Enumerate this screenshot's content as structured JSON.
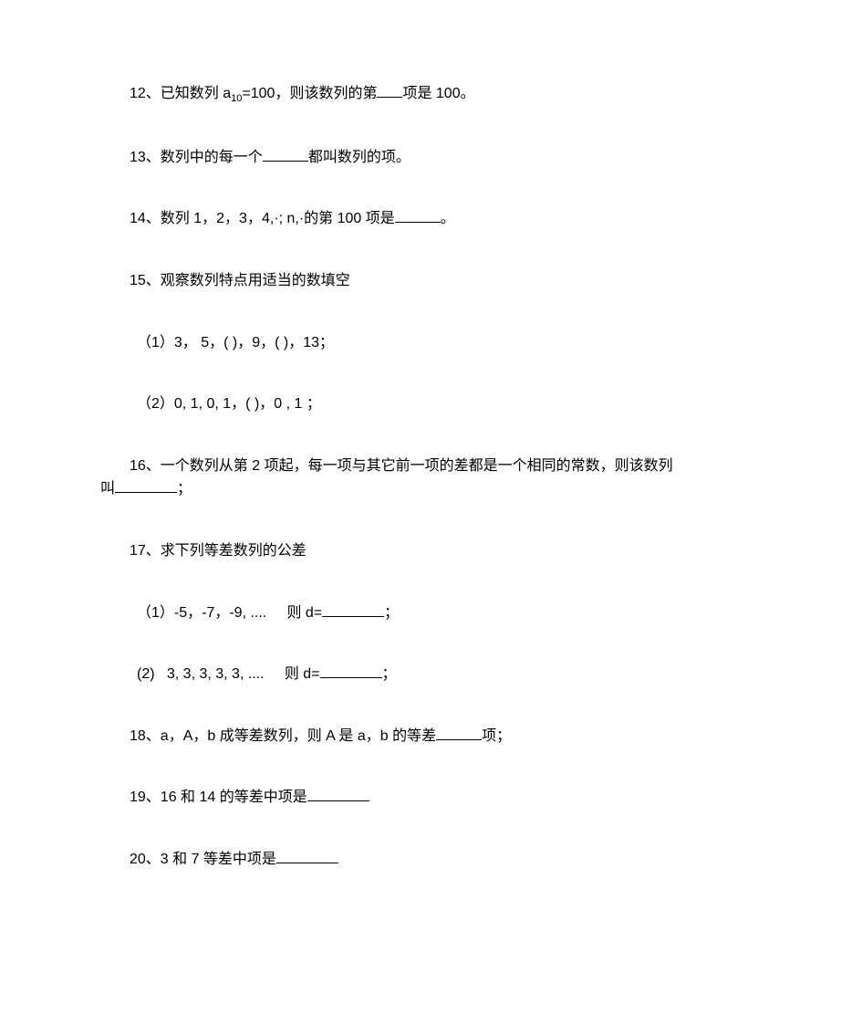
{
  "q12": {
    "prefix": "12、已知数列 a",
    "sub": "10",
    "mid": "=100，则该数列的第",
    "suffix": "项是 100。"
  },
  "q13": {
    "prefix": "13、数列中的每一个",
    "suffix": "都叫数列的项。"
  },
  "q14": {
    "prefix": "14、数列 1，2，3，4,·; n,·的第 100 项是",
    "suffix": "。"
  },
  "q15": {
    "main": "15、观察数列特点用适当的数填空",
    "sub1": "（1）3， 5，( )，9，( )，13；",
    "sub2": "（2）0, 1, 0, 1，( )，0 , 1 ；"
  },
  "q16": {
    "line1": "16、一个数列从第 2 项起，每一项与其它前一项的差都是一个相同的常数，则该数列",
    "line2_prefix": "叫",
    "line2_suffix": "；"
  },
  "q17": {
    "main": "17、求下列等差数列的公差",
    "sub1_prefix": "（1）-5，-7，-9, ....     则 d=",
    "sub1_suffix": "；",
    "sub2_prefix": "(2)   3, 3, 3, 3, 3, ....     则 d=",
    "sub2_suffix": "；"
  },
  "q18": {
    "prefix": "18、a，A，b 成等差数列，则 A 是 a，b 的等差",
    "suffix": "项；"
  },
  "q19": {
    "prefix": "19、16 和 14 的等差中项是"
  },
  "q20": {
    "prefix": "20、3 和 7 等差中项是"
  }
}
